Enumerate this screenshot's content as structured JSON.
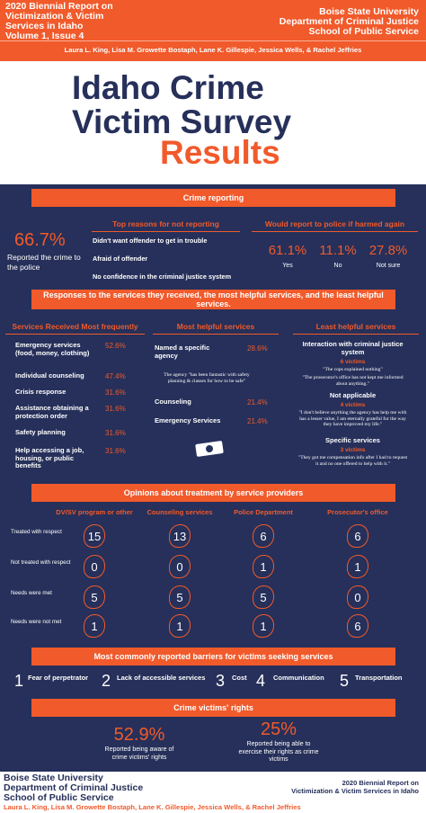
{
  "header": {
    "report": [
      "2020 Biennial Report on",
      "Victimization & Victim",
      "Services in Idaho",
      "Volume 1, Issue 4"
    ],
    "institution": [
      "Boise State University",
      "Department of Criminal Justice",
      "School of Public Service"
    ],
    "authors": "Laura L. King, Lisa M. Growette Bostaph, Lane K. Gillespie, Jessica Wells, & Rachel Jeffries"
  },
  "title": {
    "lines": [
      "Idaho Crime",
      "Victim Survey"
    ],
    "highlight": "Results"
  },
  "crime_reporting": {
    "heading": "Crime reporting",
    "reported": {
      "value": "66.7%",
      "label": "Reported the crime to the police"
    },
    "reasons": {
      "heading": "Top reasons for not reporting",
      "items": [
        "Didn't want offender to get in trouble",
        "Afraid of offender",
        "No confidence in the criminal justice system"
      ]
    },
    "would_report": {
      "heading": "Would report to police if harmed again",
      "items": [
        {
          "value": "61.1%",
          "label": "Yes"
        },
        {
          "value": "11.1%",
          "label": "No"
        },
        {
          "value": "27.8%",
          "label": "Not sure"
        }
      ]
    }
  },
  "services": {
    "heading": "Responses to the services they received, the most helpful services, and the least helpful services.",
    "received": {
      "heading": "Services Received Most frequently",
      "items": [
        {
          "label": "Emergency services (food, money, clothing)",
          "value": "52.6%"
        },
        {
          "label": "Individual counseling",
          "value": "47.4%"
        },
        {
          "label": "Crisis response",
          "value": "31.6%"
        },
        {
          "label": "Assistance obtaining a protection order",
          "value": "31.6%"
        },
        {
          "label": "Safety planning",
          "value": "31.6%"
        },
        {
          "label": "Help accessing a job, housing, or public benefits",
          "value": "31.6%"
        }
      ]
    },
    "most_helpful": {
      "heading": "Most helpful services",
      "items": [
        {
          "label": "Named a specific agency",
          "value": "28.6%"
        },
        {
          "label": "Counseling",
          "value": "21.4%"
        },
        {
          "label": "Emergency Services",
          "value": "21.4%"
        }
      ],
      "quote": "The agency \"has been fantastic with safety planning & classes for how to be safe\""
    },
    "least_helpful": {
      "heading": "Least helpful services",
      "groups": [
        {
          "label": "Interaction with criminal justice system",
          "count": "6 victims",
          "quotes": [
            "\"The cops explained nothing\"",
            "\"The prosecutor's office has not kept me informed about anything.\""
          ]
        },
        {
          "label": "Not applicable",
          "count": "4 victims",
          "quotes": [
            "\"I don't believe anything the agency has help me with has a lesser value, I am eternally grateful for the way they have improved my life.\""
          ]
        },
        {
          "label": "Specific services",
          "count": "3 victims",
          "quotes": [
            "\"They got me compensation info after I had to request it and no one offered to help with it.\""
          ]
        }
      ]
    }
  },
  "opinions": {
    "heading": "Opinions about treatment by service providers",
    "columns": [
      "DV/SV program or other",
      "Counseling services",
      "Police Department",
      "Prosecutor's office"
    ],
    "rows": [
      {
        "label": "Treated with respect",
        "values": [
          15,
          13,
          6,
          6
        ]
      },
      {
        "label": "Not treated with respect",
        "values": [
          0,
          0,
          1,
          1
        ]
      },
      {
        "label": "Needs were met",
        "values": [
          5,
          5,
          5,
          0
        ]
      },
      {
        "label": "Needs were not met",
        "values": [
          1,
          1,
          1,
          6
        ]
      }
    ]
  },
  "barriers": {
    "heading": "Most commonly reported barriers for victims seeking services",
    "items": [
      {
        "rank": 1,
        "label": "Fear of perpetrator"
      },
      {
        "rank": 2,
        "label": "Lack of accessible services"
      },
      {
        "rank": 3,
        "label": "Cost"
      },
      {
        "rank": 4,
        "label": "Communication"
      },
      {
        "rank": 5,
        "label": "Transportation"
      }
    ]
  },
  "rights": {
    "heading": "Crime victims' rights",
    "items": [
      {
        "value": "52.9%",
        "label": "Reported being aware of crime victims' rights"
      },
      {
        "value": "25%",
        "label": "Reported being able to exercise their rights as crime victims"
      }
    ]
  },
  "footer": {
    "institution": [
      "Boise State University",
      "Department of Criminal Justice",
      "School of Public Service"
    ],
    "report": [
      "2020 Biennial Report on",
      "Victimization & Victim Services in Idaho"
    ],
    "authors": "Laura L. King, Lisa M. Growette Bostaph, Lane K. Gillespie, Jessica Wells, & Rachel Jeffries"
  }
}
